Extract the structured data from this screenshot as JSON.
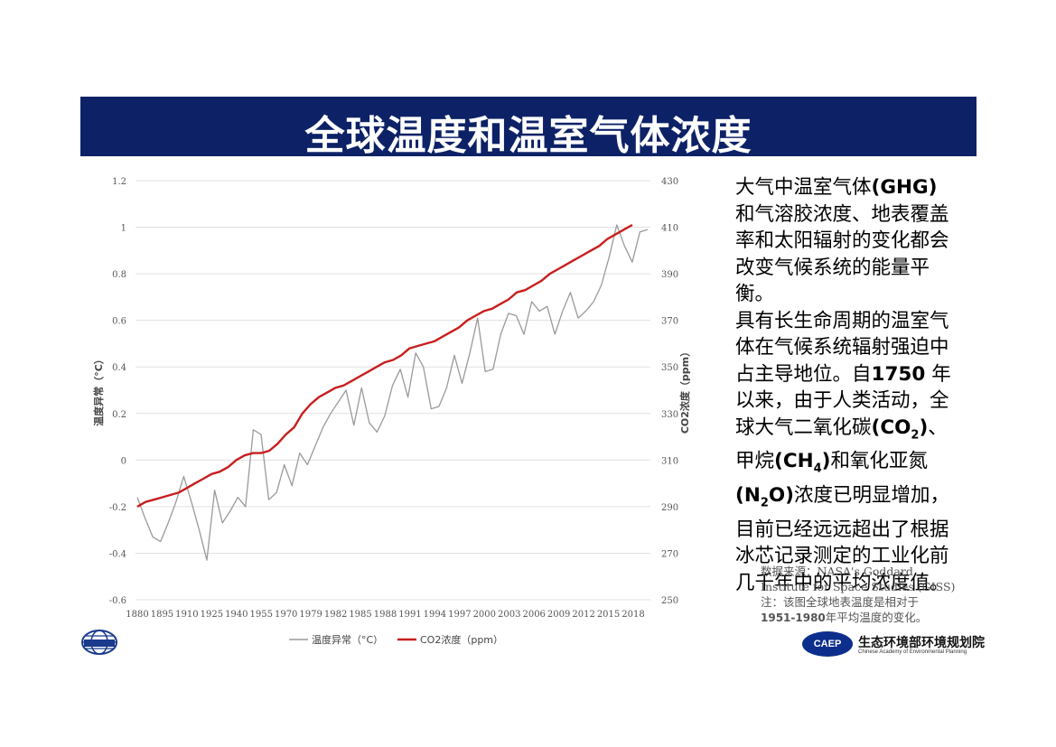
{
  "slide": {
    "title": "全球温度和温室气体浓度"
  },
  "text_block": [
    [
      {
        "t": "大气中温室气体"
      },
      {
        "t": "(GHG)",
        "b": true
      }
    ],
    [
      {
        "t": "和气溶胶浓度、地表覆盖"
      }
    ],
    [
      {
        "t": "率和太阳辐射的变化都会"
      }
    ],
    [
      {
        "t": "改变气候系统的能量平衡。"
      }
    ],
    [
      {
        "t": "具有长生命周期的温室气"
      }
    ],
    [
      {
        "t": "体在气候系统辐射强迫中"
      }
    ],
    [
      {
        "t": "占主导地位。自"
      },
      {
        "t": "1750",
        "b": true
      },
      {
        "t": " 年"
      }
    ],
    [
      {
        "t": "以来，由于人类活动，全"
      }
    ],
    [
      {
        "t": "球大气二氧化碳"
      },
      {
        "t": "(CO",
        "b": true
      },
      {
        "t": "2",
        "b": true,
        "sub": true
      },
      {
        "t": ")",
        "b": true
      },
      {
        "t": "、"
      }
    ],
    [
      {
        "t": "甲烷"
      },
      {
        "t": "(CH",
        "b": true
      },
      {
        "t": "4",
        "b": true,
        "sub": true
      },
      {
        "t": ")",
        "b": true
      },
      {
        "t": "和氧化亚氮"
      }
    ],
    [
      {
        "t": "(N",
        "b": true
      },
      {
        "t": "2",
        "b": true,
        "sub": true
      },
      {
        "t": "O)",
        "b": true
      },
      {
        "t": "浓度已明显增加，"
      }
    ],
    [
      {
        "t": "目前已经远远超出了根据"
      }
    ],
    [
      {
        "t": "冰芯记录测定的工业化前"
      }
    ],
    [
      {
        "t": "几千年中的平均浓度值。"
      }
    ]
  ],
  "source_note": {
    "line1": "数据来源：NASA's Goddard",
    "line2": "Institute for Space Studies (GISS)",
    "line3": "注：该图全球地表温度是相对于",
    "line4_bold": "1951-1980",
    "line4_rest": "年平均温度的变化。"
  },
  "logo_right": {
    "badge": "CAEP",
    "name": "生态环境部环境规划院",
    "english": "Chinese Academy of Environmental Planning"
  },
  "colors": {
    "title_bg": "#0d2266",
    "temp_line": "#9a9a9a",
    "co2_line": "#c81e1e",
    "grid": "#e0e0e0"
  },
  "chart_data": {
    "type": "line",
    "ylabel": "温度异常（°C）",
    "y2label": "CO2浓度（ppm）",
    "xticks": [
      "1880",
      "1895",
      "1910",
      "1925",
      "1940",
      "1955",
      "1970",
      "1979",
      "1982",
      "1985",
      "1988",
      "1991",
      "1994",
      "1997",
      "2000",
      "2003",
      "2006",
      "2009",
      "2012",
      "2015",
      "2018"
    ],
    "yticks": [
      "1.2",
      "1",
      "0.8",
      "0.6",
      "0.4",
      "0.2",
      "0",
      "-0.2",
      "-0.4",
      "-0.6"
    ],
    "y2ticks": [
      "430",
      "410",
      "390",
      "370",
      "350",
      "330",
      "310",
      "290",
      "270",
      "250"
    ],
    "ylim": [
      -0.6,
      1.2
    ],
    "y2lim": [
      250,
      430
    ],
    "grid": true,
    "legend_position": "bottom",
    "series": [
      {
        "name": "温度异常（°C）",
        "axis": "left",
        "color": "#9a9a9a",
        "values": [
          -0.16,
          -0.25,
          -0.33,
          -0.35,
          -0.27,
          -0.18,
          -0.07,
          -0.18,
          -0.3,
          -0.43,
          -0.13,
          -0.27,
          -0.22,
          -0.16,
          -0.2,
          0.13,
          0.11,
          -0.17,
          -0.14,
          -0.02,
          -0.11,
          0.03,
          -0.02,
          0.06,
          0.14,
          0.2,
          0.25,
          0.3,
          0.15,
          0.31,
          0.16,
          0.12,
          0.19,
          0.32,
          0.39,
          0.27,
          0.46,
          0.4,
          0.22,
          0.23,
          0.31,
          0.45,
          0.33,
          0.46,
          0.61,
          0.38,
          0.39,
          0.54,
          0.63,
          0.62,
          0.54,
          0.68,
          0.64,
          0.66,
          0.54,
          0.64,
          0.72,
          0.61,
          0.64,
          0.68,
          0.75,
          0.87,
          1.01,
          0.92,
          0.85,
          0.98,
          0.99
        ]
      },
      {
        "name": "CO2浓度（ppm）",
        "axis": "right",
        "color": "#c81e1e",
        "values": [
          290,
          292,
          293,
          294,
          295,
          296,
          298,
          300,
          302,
          304,
          305,
          307,
          310,
          312,
          313,
          313,
          314,
          317,
          321,
          324,
          330,
          334,
          337,
          339,
          341,
          342,
          344,
          346,
          348,
          350,
          352,
          353,
          355,
          358,
          359,
          360,
          361,
          363,
          365,
          367,
          370,
          372,
          374,
          375,
          377,
          379,
          382,
          383,
          385,
          387,
          390,
          392,
          394,
          396,
          398,
          400,
          402,
          405,
          407,
          409,
          411
        ]
      }
    ]
  }
}
